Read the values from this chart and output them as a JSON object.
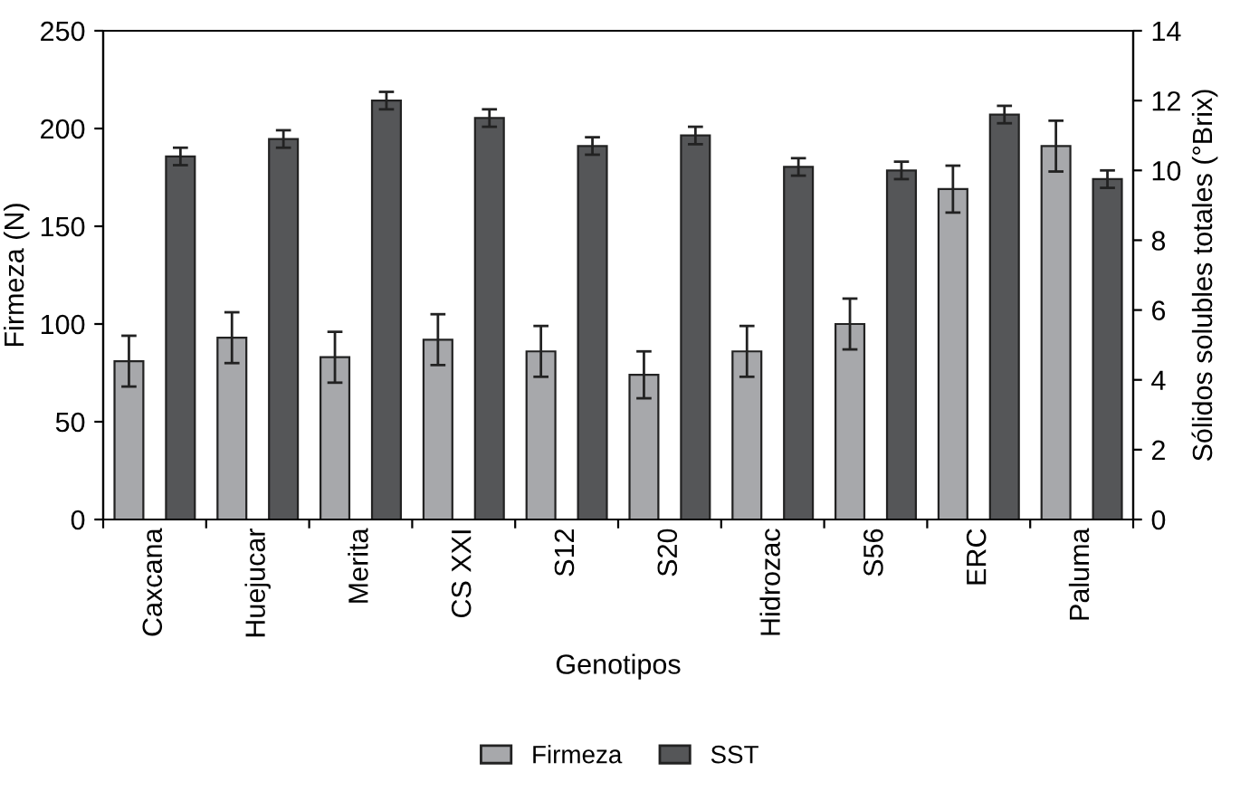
{
  "chart_data": {
    "type": "bar",
    "xlabel": "Genotipos",
    "ylabel": "Firmeza (N)",
    "y2label": "Sólidos solubles totales (°Brix)",
    "categories": [
      "Caxcana",
      "Huejucar",
      "Merita",
      "CS XXI",
      "S12",
      "S20",
      "Hidrozac",
      "S56",
      "ERC",
      "Paluma"
    ],
    "series": [
      {
        "name": "Firmeza",
        "color": "#a7a8ab",
        "values": [
          81,
          93,
          83,
          92,
          86,
          74,
          86,
          100,
          169,
          191
        ],
        "errors": [
          13,
          13,
          13,
          13,
          13,
          12,
          13,
          13,
          12,
          13
        ]
      },
      {
        "name": "SST",
        "color": "#555658",
        "axis": "y2",
        "values": [
          10.4,
          10.9,
          12.0,
          11.5,
          10.7,
          11.0,
          10.1,
          10.0,
          11.6,
          9.75
        ],
        "errors": [
          0.25,
          0.25,
          0.25,
          0.25,
          0.25,
          0.25,
          0.25,
          0.25,
          0.25,
          0.25
        ]
      }
    ],
    "ylim": [
      0,
      250
    ],
    "yticks": [
      0,
      50,
      100,
      150,
      200,
      250
    ],
    "y2lim": [
      0,
      14
    ],
    "y2ticks": [
      0,
      2,
      4,
      6,
      8,
      10,
      12,
      14
    ],
    "grid": false,
    "legend": "bottom"
  }
}
